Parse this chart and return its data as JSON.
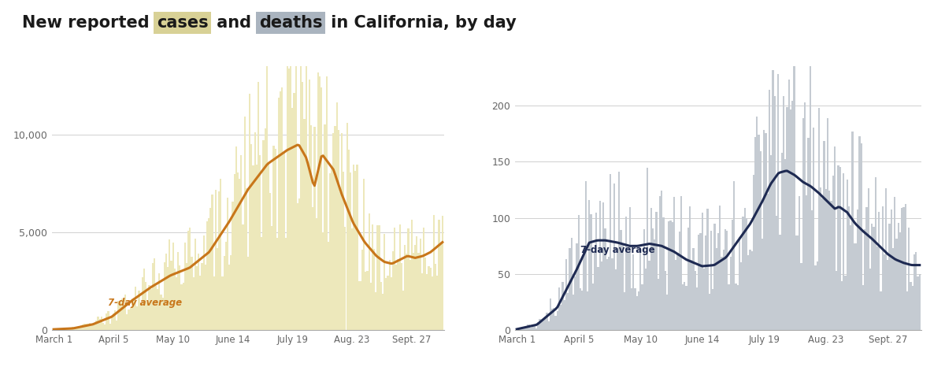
{
  "title_parts": [
    "New reported ",
    "cases",
    " and ",
    "deaths",
    " in California, by day"
  ],
  "cases_highlight_color": "#d8d196",
  "deaths_highlight_color": "#aab4bf",
  "title_fontsize": 15,
  "background_color": "#ffffff",
  "cases_bar_color": "#ede8bb",
  "cases_line_color": "#c8761a",
  "deaths_bar_color": "#c5cbd2",
  "deaths_line_color": "#1e2a52",
  "x_labels": [
    "March 1",
    "April 5",
    "May 10",
    "June 14",
    "July 19",
    "Aug. 23",
    "Sept. 27"
  ],
  "cases_yticks": [
    0,
    5000,
    10000
  ],
  "deaths_yticks": [
    0,
    50,
    100,
    150,
    200
  ],
  "cases_ylim": [
    0,
    13500
  ],
  "deaths_ylim": [
    0,
    235
  ],
  "label_7day_cases": "7-day average",
  "label_7day_deaths": "7-day average",
  "n_days": 229
}
